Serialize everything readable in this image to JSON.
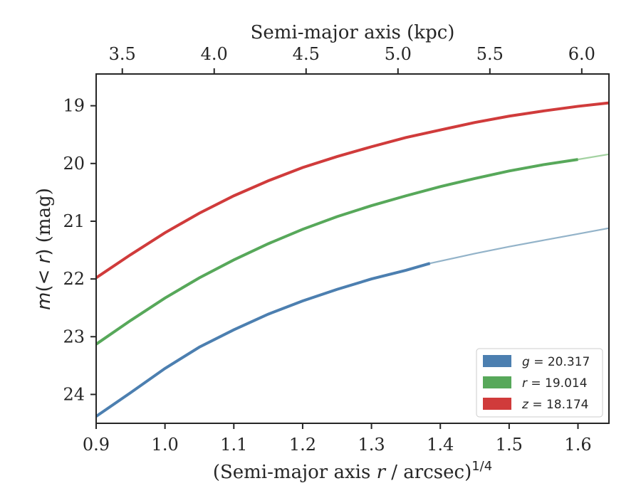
{
  "chart_data": {
    "type": "line",
    "title": "",
    "xlabel_main": "(Semi-major axis ",
    "xlabel_var": "r",
    "xlabel_tail": " / arcsec)",
    "xlabel_exp": "1/4",
    "xlabel_top": "Semi-major axis (kpc)",
    "ylabel_main": "m",
    "ylabel_paren_open": "(",
    "ylabel_lt": "< ",
    "ylabel_var": "r",
    "ylabel_paren_close": ")",
    "ylabel_unit": " (mag)",
    "xlim": [
      0.9,
      1.645
    ],
    "ylim": [
      24.5,
      18.45
    ],
    "y_inverted": true,
    "xticks": [
      "0.9",
      "1.0",
      "1.1",
      "1.2",
      "1.3",
      "1.4",
      "1.5",
      "1.6"
    ],
    "xtick_values": [
      0.9,
      1.0,
      1.1,
      1.2,
      1.3,
      1.4,
      1.5,
      1.6
    ],
    "yticks": [
      "19",
      "20",
      "21",
      "22",
      "23",
      "24"
    ],
    "ytick_values": [
      19,
      20,
      21,
      22,
      23,
      24
    ],
    "top_xticks": [
      "3.5",
      "4.0",
      "4.5",
      "5.0",
      "5.5",
      "6.0"
    ],
    "top_xtick_values_kpc": [
      3.5,
      4.0,
      4.5,
      5.0,
      5.5,
      6.0
    ],
    "top_xtick_positions": [
      0.938,
      1.0715,
      1.205,
      1.3385,
      1.472,
      1.6055
    ],
    "grid": false,
    "legend_position": "lower-right",
    "series": [
      {
        "name": "g",
        "value_label": " = 20.317",
        "color": "#4c7fb0",
        "color_faint": "#93b3c9",
        "solid_until": 1.385,
        "x": [
          0.9,
          0.95,
          1.0,
          1.05,
          1.1,
          1.15,
          1.2,
          1.25,
          1.3,
          1.35,
          1.385,
          1.45,
          1.5,
          1.55,
          1.6,
          1.645
        ],
        "y": [
          24.38,
          23.97,
          23.55,
          23.18,
          22.88,
          22.61,
          22.38,
          22.18,
          22.0,
          21.85,
          21.73,
          21.56,
          21.44,
          21.33,
          21.22,
          21.12
        ]
      },
      {
        "name": "r",
        "value_label": " = 19.014",
        "color": "#57a85a",
        "color_faint": "#a3d2a1",
        "solid_until": 1.6,
        "x": [
          0.9,
          0.95,
          1.0,
          1.05,
          1.1,
          1.15,
          1.2,
          1.25,
          1.3,
          1.35,
          1.4,
          1.45,
          1.5,
          1.55,
          1.6,
          1.645
        ],
        "y": [
          23.13,
          22.72,
          22.33,
          21.98,
          21.67,
          21.39,
          21.14,
          20.92,
          20.73,
          20.56,
          20.4,
          20.26,
          20.13,
          20.02,
          19.93,
          19.84
        ]
      },
      {
        "name": "z",
        "value_label": " = 18.174",
        "color": "#d03b3b",
        "color_faint": "#e89a9a",
        "solid_until": 1.645,
        "x": [
          0.9,
          0.95,
          1.0,
          1.05,
          1.1,
          1.15,
          1.2,
          1.25,
          1.3,
          1.35,
          1.4,
          1.45,
          1.5,
          1.55,
          1.6,
          1.645
        ],
        "y": [
          21.98,
          21.58,
          21.2,
          20.86,
          20.56,
          20.3,
          20.07,
          19.88,
          19.71,
          19.55,
          19.42,
          19.29,
          19.18,
          19.09,
          19.01,
          18.95
        ]
      }
    ]
  }
}
